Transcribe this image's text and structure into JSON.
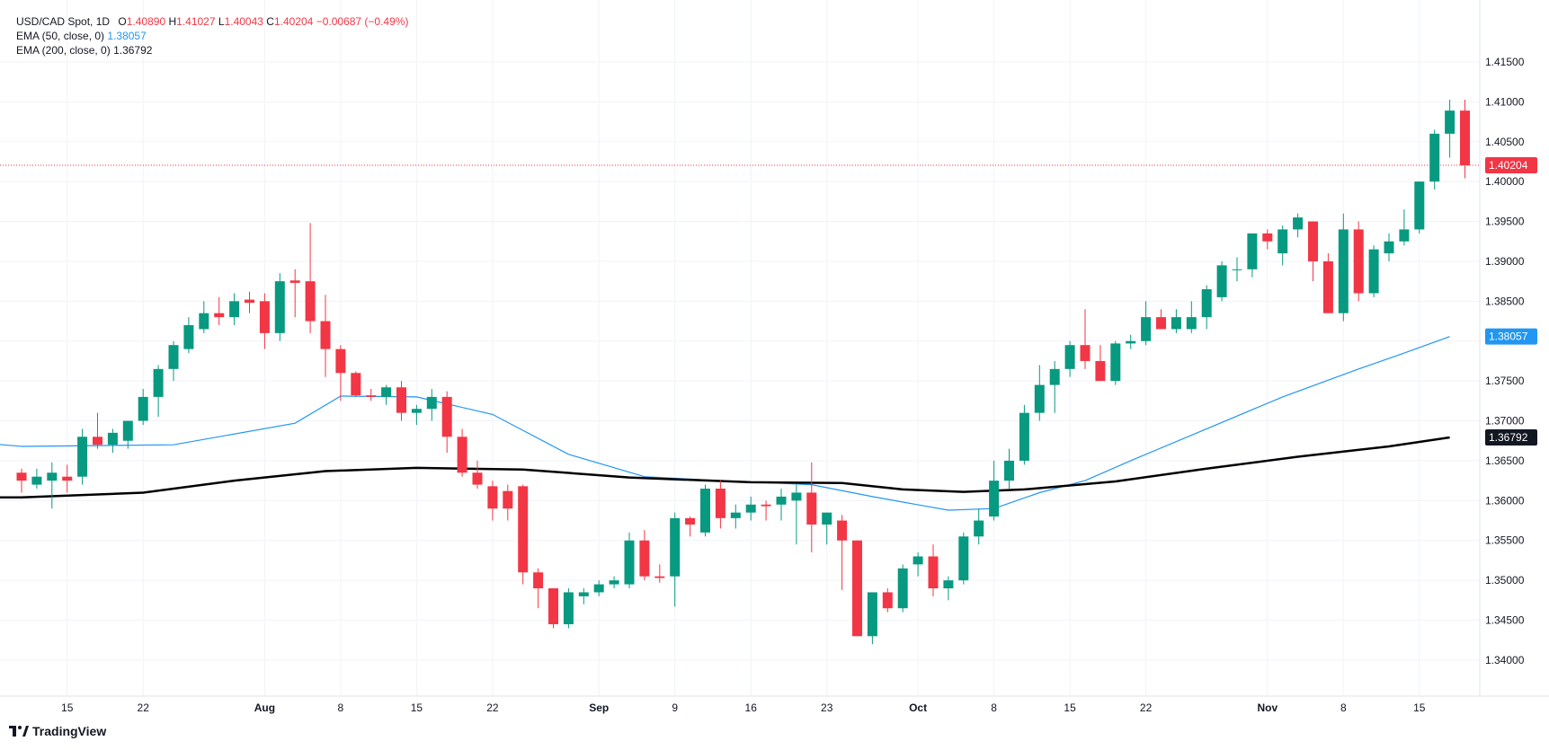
{
  "legend": {
    "symbol": "USD/CAD Spot, 1D",
    "open_label": "O",
    "open": "1.40890",
    "high_label": "H",
    "high": "1.41027",
    "low_label": "L",
    "low": "1.40043",
    "close_label": "C",
    "close": "1.40204",
    "change": "−0.00687 (−0.49%)",
    "ema50_label": "EMA (50, close, 0)",
    "ema50_value": "1.38057",
    "ema200_label": "EMA (200, close, 0)",
    "ema200_value": "1.36792"
  },
  "attribution": "TradingView",
  "colors": {
    "up": "#089981",
    "down": "#f23645",
    "ema50": "#2196f3",
    "ema200": "#000000",
    "grid": "#f0f3fa",
    "price_line": "#f23645"
  },
  "chart_data": {
    "type": "candlestick",
    "title": "USD/CAD Spot, 1D",
    "ylim": [
      1.3365,
      1.4195
    ],
    "y_ticks": [
      "1.34000",
      "1.34500",
      "1.35000",
      "1.35500",
      "1.36000",
      "1.36500",
      "1.37000",
      "1.37500",
      "1.38000",
      "1.38500",
      "1.39000",
      "1.39500",
      "1.40000",
      "1.40500",
      "1.41000",
      "1.41500"
    ],
    "x_ticks": [
      {
        "label": "15",
        "index": 3
      },
      {
        "label": "22",
        "index": 8
      },
      {
        "label": "Aug",
        "index": 16
      },
      {
        "label": "8",
        "index": 21
      },
      {
        "label": "15",
        "index": 26
      },
      {
        "label": "22",
        "index": 31
      },
      {
        "label": "Sep",
        "index": 38
      },
      {
        "label": "9",
        "index": 43
      },
      {
        "label": "16",
        "index": 48
      },
      {
        "label": "23",
        "index": 53
      },
      {
        "label": "Oct",
        "index": 59
      },
      {
        "label": "8",
        "index": 64
      },
      {
        "label": "15",
        "index": 69
      },
      {
        "label": "22",
        "index": 74
      },
      {
        "label": "Nov",
        "index": 82
      },
      {
        "label": "8",
        "index": 87
      },
      {
        "label": "15",
        "index": 92
      }
    ],
    "last_price_label": "1.40204",
    "last_price": 1.40204,
    "ema50_label": "1.38057",
    "ema200_label": "1.36792",
    "candles": [
      [
        1.3635,
        1.364,
        1.361,
        1.3625
      ],
      [
        1.362,
        1.364,
        1.3615,
        1.363
      ],
      [
        1.3625,
        1.3648,
        1.359,
        1.3635
      ],
      [
        1.363,
        1.3645,
        1.361,
        1.3625
      ],
      [
        1.363,
        1.369,
        1.362,
        1.368
      ],
      [
        1.368,
        1.371,
        1.3665,
        1.367
      ],
      [
        1.367,
        1.369,
        1.366,
        1.3685
      ],
      [
        1.3675,
        1.37,
        1.3665,
        1.37
      ],
      [
        1.37,
        1.374,
        1.3695,
        1.373
      ],
      [
        1.373,
        1.377,
        1.3705,
        1.3765
      ],
      [
        1.3765,
        1.38,
        1.375,
        1.3795
      ],
      [
        1.379,
        1.383,
        1.3785,
        1.382
      ],
      [
        1.3815,
        1.385,
        1.381,
        1.3835
      ],
      [
        1.3835,
        1.3855,
        1.382,
        1.383
      ],
      [
        1.383,
        1.386,
        1.382,
        1.385
      ],
      [
        1.3852,
        1.3862,
        1.3835,
        1.3848
      ],
      [
        1.385,
        1.386,
        1.379,
        1.381
      ],
      [
        1.381,
        1.3885,
        1.38,
        1.3875
      ],
      [
        1.3876,
        1.389,
        1.383,
        1.3873
      ],
      [
        1.3875,
        1.3948,
        1.381,
        1.3825
      ],
      [
        1.3825,
        1.3858,
        1.3755,
        1.379
      ],
      [
        1.379,
        1.3795,
        1.3725,
        1.376
      ],
      [
        1.376,
        1.3762,
        1.373,
        1.3732
      ],
      [
        1.3732,
        1.374,
        1.3725,
        1.373
      ],
      [
        1.373,
        1.3745,
        1.372,
        1.3742
      ],
      [
        1.3742,
        1.375,
        1.37,
        1.371
      ],
      [
        1.371,
        1.372,
        1.3695,
        1.3715
      ],
      [
        1.3715,
        1.374,
        1.37,
        1.373
      ],
      [
        1.373,
        1.3737,
        1.366,
        1.368
      ],
      [
        1.368,
        1.369,
        1.363,
        1.3635
      ],
      [
        1.3635,
        1.365,
        1.3615,
        1.362
      ],
      [
        1.3618,
        1.3625,
        1.3575,
        1.359
      ],
      [
        1.3612,
        1.362,
        1.3575,
        1.359
      ],
      [
        1.3618,
        1.362,
        1.3495,
        1.351
      ],
      [
        1.351,
        1.3515,
        1.3465,
        1.349
      ],
      [
        1.349,
        1.349,
        1.344,
        1.3445
      ],
      [
        1.3445,
        1.349,
        1.344,
        1.3485
      ],
      [
        1.348,
        1.349,
        1.347,
        1.3485
      ],
      [
        1.3485,
        1.35,
        1.348,
        1.3495
      ],
      [
        1.3495,
        1.3505,
        1.349,
        1.35
      ],
      [
        1.3495,
        1.356,
        1.349,
        1.355
      ],
      [
        1.355,
        1.3563,
        1.35,
        1.3505
      ],
      [
        1.3505,
        1.352,
        1.3497,
        1.3503
      ],
      [
        1.3505,
        1.3585,
        1.3467,
        1.3578
      ],
      [
        1.3578,
        1.358,
        1.3555,
        1.357
      ],
      [
        1.356,
        1.362,
        1.3555,
        1.3615
      ],
      [
        1.3615,
        1.3625,
        1.3565,
        1.3578
      ],
      [
        1.3578,
        1.3595,
        1.3565,
        1.3585
      ],
      [
        1.3585,
        1.3605,
        1.3575,
        1.3595
      ],
      [
        1.3595,
        1.36,
        1.3575,
        1.3593
      ],
      [
        1.3595,
        1.3615,
        1.3575,
        1.3605
      ],
      [
        1.36,
        1.362,
        1.3545,
        1.361
      ],
      [
        1.361,
        1.3648,
        1.3535,
        1.357
      ],
      [
        1.357,
        1.3585,
        1.3545,
        1.3585
      ],
      [
        1.3575,
        1.3582,
        1.3488,
        1.355
      ],
      [
        1.355,
        1.355,
        1.343,
        1.343
      ],
      [
        1.343,
        1.3485,
        1.342,
        1.3485
      ],
      [
        1.3485,
        1.349,
        1.346,
        1.3465
      ],
      [
        1.3465,
        1.352,
        1.346,
        1.3515
      ],
      [
        1.352,
        1.3535,
        1.3505,
        1.353
      ],
      [
        1.353,
        1.3545,
        1.348,
        1.349
      ],
      [
        1.349,
        1.3505,
        1.3475,
        1.35
      ],
      [
        1.35,
        1.356,
        1.3495,
        1.3555
      ],
      [
        1.3555,
        1.359,
        1.3545,
        1.3575
      ],
      [
        1.358,
        1.365,
        1.3575,
        1.3625
      ],
      [
        1.3625,
        1.3665,
        1.3615,
        1.365
      ],
      [
        1.365,
        1.372,
        1.3645,
        1.371
      ],
      [
        1.371,
        1.377,
        1.37,
        1.3745
      ],
      [
        1.3745,
        1.3775,
        1.371,
        1.3765
      ],
      [
        1.3765,
        1.38,
        1.3755,
        1.3795
      ],
      [
        1.3795,
        1.384,
        1.3765,
        1.3775
      ],
      [
        1.3775,
        1.3795,
        1.375,
        1.375
      ],
      [
        1.375,
        1.38,
        1.3745,
        1.3797
      ],
      [
        1.3797,
        1.3808,
        1.379,
        1.38
      ],
      [
        1.38,
        1.385,
        1.3795,
        1.383
      ],
      [
        1.383,
        1.384,
        1.3815,
        1.3815
      ],
      [
        1.3815,
        1.384,
        1.381,
        1.383
      ],
      [
        1.3815,
        1.385,
        1.381,
        1.383
      ],
      [
        1.383,
        1.387,
        1.3815,
        1.3865
      ],
      [
        1.3855,
        1.39,
        1.385,
        1.3895
      ],
      [
        1.389,
        1.3905,
        1.3875,
        1.389
      ],
      [
        1.389,
        1.3935,
        1.388,
        1.3935
      ],
      [
        1.3935,
        1.394,
        1.3915,
        1.3925
      ],
      [
        1.391,
        1.3945,
        1.3895,
        1.394
      ],
      [
        1.394,
        1.396,
        1.393,
        1.3955
      ],
      [
        1.395,
        1.395,
        1.3875,
        1.39
      ],
      [
        1.39,
        1.391,
        1.3835,
        1.3835
      ],
      [
        1.3835,
        1.396,
        1.3825,
        1.394
      ],
      [
        1.394,
        1.395,
        1.385,
        1.386
      ],
      [
        1.386,
        1.392,
        1.3855,
        1.3915
      ],
      [
        1.391,
        1.3935,
        1.39,
        1.3925
      ],
      [
        1.3925,
        1.3965,
        1.392,
        1.394
      ],
      [
        1.394,
        1.4,
        1.3935,
        1.4
      ],
      [
        1.4,
        1.4065,
        1.399,
        1.406
      ],
      [
        1.406,
        1.41027,
        1.403,
        1.4089
      ],
      [
        1.4089,
        1.41027,
        1.40043,
        1.40204
      ]
    ],
    "ema50": [
      [
        0,
        1.3668
      ],
      [
        10,
        1.367
      ],
      [
        18,
        1.3697
      ],
      [
        21,
        1.3731
      ],
      [
        26,
        1.373
      ],
      [
        31,
        1.3708
      ],
      [
        36,
        1.3658
      ],
      [
        41,
        1.363
      ],
      [
        46,
        1.3625
      ],
      [
        52,
        1.362
      ],
      [
        56,
        1.3605
      ],
      [
        61,
        1.3588
      ],
      [
        64,
        1.359
      ],
      [
        67,
        1.361
      ],
      [
        70,
        1.3625
      ],
      [
        73,
        1.365
      ],
      [
        78,
        1.369
      ],
      [
        83,
        1.373
      ],
      [
        88,
        1.3765
      ],
      [
        91,
        1.3785
      ],
      [
        94,
        1.38057
      ]
    ],
    "ema200": [
      [
        0,
        1.3604
      ],
      [
        8,
        1.361
      ],
      [
        14,
        1.3625
      ],
      [
        20,
        1.3637
      ],
      [
        26,
        1.3641
      ],
      [
        33,
        1.3639
      ],
      [
        40,
        1.3629
      ],
      [
        48,
        1.3623
      ],
      [
        54,
        1.3622
      ],
      [
        58,
        1.3614
      ],
      [
        62,
        1.3611
      ],
      [
        66,
        1.3614
      ],
      [
        72,
        1.3624
      ],
      [
        78,
        1.364
      ],
      [
        84,
        1.3655
      ],
      [
        90,
        1.3668
      ],
      [
        94,
        1.36792
      ]
    ]
  }
}
